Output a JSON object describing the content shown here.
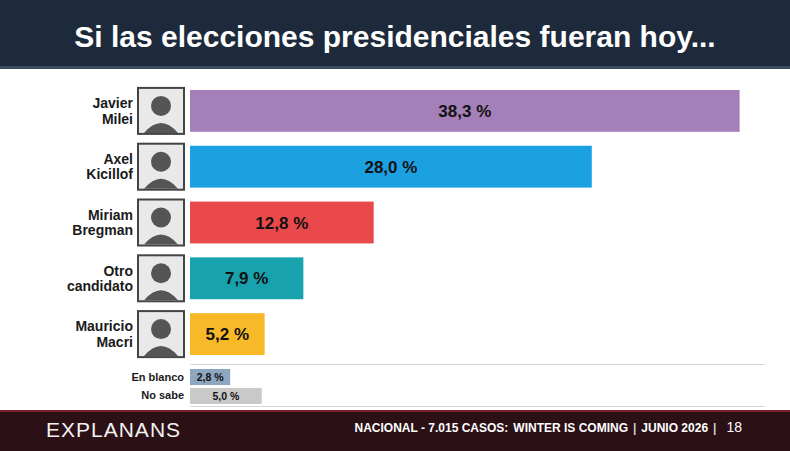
{
  "chart_data": [
    {
      "type": "bar",
      "orientation": "horizontal",
      "title": "Si las elecciones presidenciales fueran hoy...",
      "categories": [
        "Javier Milei",
        "Axel Kicillof",
        "Miriam Bregman",
        "Otro candidato",
        "Mauricio Macri"
      ],
      "values": [
        38.3,
        28.0,
        12.8,
        7.9,
        5.2
      ],
      "value_labels": [
        "38,3 %",
        "28,0 %",
        "12,8 %",
        "7,9 %",
        "5,2 %"
      ],
      "colors": [
        "#a57fb8",
        "#1ba1e2",
        "#e9494b",
        "#17a2ad",
        "#f7b928"
      ],
      "xlim": [
        0,
        40
      ],
      "xticks": [],
      "tick_labels": "y",
      "data_labels": true,
      "grid": false
    },
    {
      "type": "bar",
      "orientation": "horizontal",
      "categories": [
        "En blanco",
        "No sabe"
      ],
      "values": [
        2.8,
        5.0
      ],
      "value_labels": [
        "2,8 %",
        "5,0 %"
      ],
      "colors": [
        "#8ea7c1",
        "#c9c9c9"
      ],
      "xlim": [
        0,
        40
      ],
      "xticks": [],
      "tick_labels": "y",
      "data_labels": true,
      "grid": false
    }
  ],
  "footer": {
    "brand": "EXPLANANS",
    "parts": [
      "NACIONAL - 7.015 CASOS:",
      "WINTER IS COMING",
      "|",
      "JUNIO 2026",
      "|",
      "18"
    ]
  }
}
